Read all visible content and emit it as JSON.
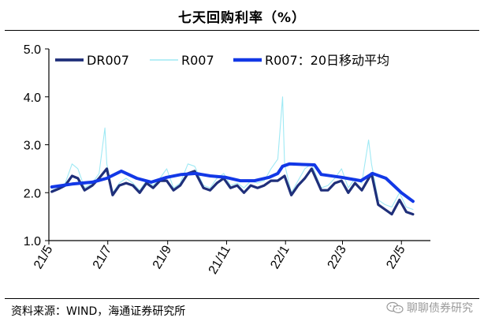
{
  "title": "七天回购利率（%）",
  "source": "资料来源：WIND，海通证券研究所",
  "watermark": {
    "icon": "wechat-icon",
    "text": "聊聊债券研究"
  },
  "colors": {
    "dr007": "#1f2f7a",
    "r007": "#9fe9f4",
    "ma20": "#1238e6",
    "axis": "#000000"
  },
  "chart_data": {
    "type": "line",
    "title": "七天回购利率（%）",
    "xlabel": "",
    "ylabel": "",
    "ylim": [
      1.0,
      5.0
    ],
    "yticks": [
      "1.0",
      "2.0",
      "3.0",
      "4.0",
      "5.0"
    ],
    "xlim": [
      "2021-05-01",
      "2022-05-31"
    ],
    "xticks": [
      {
        "label": "21/5",
        "date": "2021-05-01"
      },
      {
        "label": "21/7",
        "date": "2021-07-01"
      },
      {
        "label": "21/9",
        "date": "2021-09-01"
      },
      {
        "label": "21/11",
        "date": "2021-11-01"
      },
      {
        "label": "22/1",
        "date": "2022-01-01"
      },
      {
        "label": "22/3",
        "date": "2022-03-01"
      },
      {
        "label": "22/5",
        "date": "2022-05-01"
      }
    ],
    "legend": {
      "placement": "top",
      "entries": [
        "DR007",
        "R007",
        "R007：20日移动平均"
      ]
    },
    "grid": false,
    "series": [
      {
        "name": "DR007",
        "color_key": "dr007",
        "points": [
          [
            "2021-05-04",
            2.02
          ],
          [
            "2021-05-11",
            2.08
          ],
          [
            "2021-05-18",
            2.15
          ],
          [
            "2021-05-25",
            2.35
          ],
          [
            "2021-05-31",
            2.3
          ],
          [
            "2021-06-07",
            2.05
          ],
          [
            "2021-06-15",
            2.15
          ],
          [
            "2021-06-22",
            2.3
          ],
          [
            "2021-06-30",
            2.5
          ],
          [
            "2021-07-06",
            1.95
          ],
          [
            "2021-07-13",
            2.15
          ],
          [
            "2021-07-20",
            2.2
          ],
          [
            "2021-07-27",
            2.15
          ],
          [
            "2021-08-03",
            2.0
          ],
          [
            "2021-08-10",
            2.2
          ],
          [
            "2021-08-17",
            2.1
          ],
          [
            "2021-08-24",
            2.25
          ],
          [
            "2021-08-31",
            2.25
          ],
          [
            "2021-09-07",
            2.05
          ],
          [
            "2021-09-14",
            2.15
          ],
          [
            "2021-09-22",
            2.4
          ],
          [
            "2021-09-29",
            2.45
          ],
          [
            "2021-10-08",
            2.1
          ],
          [
            "2021-10-15",
            2.05
          ],
          [
            "2021-10-22",
            2.2
          ],
          [
            "2021-10-29",
            2.3
          ],
          [
            "2021-11-05",
            2.1
          ],
          [
            "2021-11-12",
            2.15
          ],
          [
            "2021-11-19",
            2.0
          ],
          [
            "2021-11-26",
            2.15
          ],
          [
            "2021-12-03",
            2.1
          ],
          [
            "2021-12-10",
            2.15
          ],
          [
            "2021-12-17",
            2.25
          ],
          [
            "2021-12-24",
            2.25
          ],
          [
            "2021-12-31",
            2.35
          ],
          [
            "2022-01-07",
            1.95
          ],
          [
            "2022-01-14",
            2.15
          ],
          [
            "2022-01-21",
            2.3
          ],
          [
            "2022-01-28",
            2.5
          ],
          [
            "2022-02-07",
            2.05
          ],
          [
            "2022-02-14",
            2.05
          ],
          [
            "2022-02-21",
            2.2
          ],
          [
            "2022-02-28",
            2.25
          ],
          [
            "2022-03-07",
            2.0
          ],
          [
            "2022-03-14",
            2.2
          ],
          [
            "2022-03-21",
            2.05
          ],
          [
            "2022-03-31",
            2.4
          ],
          [
            "2022-04-07",
            1.75
          ],
          [
            "2022-04-14",
            1.65
          ],
          [
            "2022-04-21",
            1.55
          ],
          [
            "2022-04-29",
            1.85
          ],
          [
            "2022-05-06",
            1.6
          ],
          [
            "2022-05-13",
            1.55
          ]
        ]
      },
      {
        "name": "R007",
        "color_key": "r007",
        "points": [
          [
            "2021-05-04",
            2.05
          ],
          [
            "2021-05-11",
            2.1
          ],
          [
            "2021-05-18",
            2.2
          ],
          [
            "2021-05-25",
            2.6
          ],
          [
            "2021-05-31",
            2.5
          ],
          [
            "2021-06-07",
            2.1
          ],
          [
            "2021-06-15",
            2.2
          ],
          [
            "2021-06-22",
            2.4
          ],
          [
            "2021-06-28",
            3.35
          ],
          [
            "2021-06-30",
            2.6
          ],
          [
            "2021-07-06",
            2.0
          ],
          [
            "2021-07-13",
            2.2
          ],
          [
            "2021-07-20",
            2.3
          ],
          [
            "2021-07-27",
            2.2
          ],
          [
            "2021-08-03",
            2.05
          ],
          [
            "2021-08-10",
            2.25
          ],
          [
            "2021-08-17",
            2.15
          ],
          [
            "2021-08-24",
            2.3
          ],
          [
            "2021-08-31",
            2.5
          ],
          [
            "2021-09-07",
            2.1
          ],
          [
            "2021-09-14",
            2.2
          ],
          [
            "2021-09-22",
            2.6
          ],
          [
            "2021-09-29",
            2.55
          ],
          [
            "2021-10-08",
            2.15
          ],
          [
            "2021-10-15",
            2.1
          ],
          [
            "2021-10-22",
            2.3
          ],
          [
            "2021-10-29",
            2.4
          ],
          [
            "2021-11-05",
            2.15
          ],
          [
            "2021-11-12",
            2.2
          ],
          [
            "2021-11-19",
            2.1
          ],
          [
            "2021-11-26",
            2.25
          ],
          [
            "2021-12-03",
            2.2
          ],
          [
            "2021-12-10",
            2.25
          ],
          [
            "2021-12-17",
            2.5
          ],
          [
            "2021-12-24",
            2.7
          ],
          [
            "2021-12-29",
            4.0
          ],
          [
            "2021-12-31",
            2.6
          ],
          [
            "2022-01-07",
            2.0
          ],
          [
            "2022-01-14",
            2.25
          ],
          [
            "2022-01-21",
            2.5
          ],
          [
            "2022-01-28",
            2.6
          ],
          [
            "2022-02-07",
            2.1
          ],
          [
            "2022-02-14",
            2.15
          ],
          [
            "2022-02-21",
            2.3
          ],
          [
            "2022-02-28",
            2.5
          ],
          [
            "2022-03-07",
            2.1
          ],
          [
            "2022-03-14",
            2.3
          ],
          [
            "2022-03-21",
            2.2
          ],
          [
            "2022-03-28",
            3.1
          ],
          [
            "2022-03-31",
            2.6
          ],
          [
            "2022-04-07",
            1.85
          ],
          [
            "2022-04-14",
            1.75
          ],
          [
            "2022-04-21",
            1.7
          ],
          [
            "2022-04-29",
            2.0
          ],
          [
            "2022-05-06",
            1.7
          ],
          [
            "2022-05-13",
            1.65
          ]
        ]
      },
      {
        "name": "R007：20日移动平均",
        "color_key": "ma20",
        "points": [
          [
            "2021-05-04",
            2.12
          ],
          [
            "2021-05-25",
            2.18
          ],
          [
            "2021-06-15",
            2.22
          ],
          [
            "2021-06-30",
            2.3
          ],
          [
            "2021-07-15",
            2.45
          ],
          [
            "2021-07-31",
            2.3
          ],
          [
            "2021-08-15",
            2.22
          ],
          [
            "2021-08-31",
            2.32
          ],
          [
            "2021-09-15",
            2.38
          ],
          [
            "2021-09-30",
            2.4
          ],
          [
            "2021-10-15",
            2.35
          ],
          [
            "2021-10-31",
            2.32
          ],
          [
            "2021-11-15",
            2.25
          ],
          [
            "2021-11-30",
            2.25
          ],
          [
            "2021-12-15",
            2.32
          ],
          [
            "2021-12-24",
            2.4
          ],
          [
            "2021-12-29",
            2.55
          ],
          [
            "2022-01-05",
            2.6
          ],
          [
            "2022-01-31",
            2.58
          ],
          [
            "2022-02-07",
            2.38
          ],
          [
            "2022-02-28",
            2.32
          ],
          [
            "2022-03-20",
            2.25
          ],
          [
            "2022-04-01",
            2.4
          ],
          [
            "2022-04-15",
            2.3
          ],
          [
            "2022-05-01",
            2.0
          ],
          [
            "2022-05-13",
            1.82
          ]
        ]
      }
    ]
  }
}
